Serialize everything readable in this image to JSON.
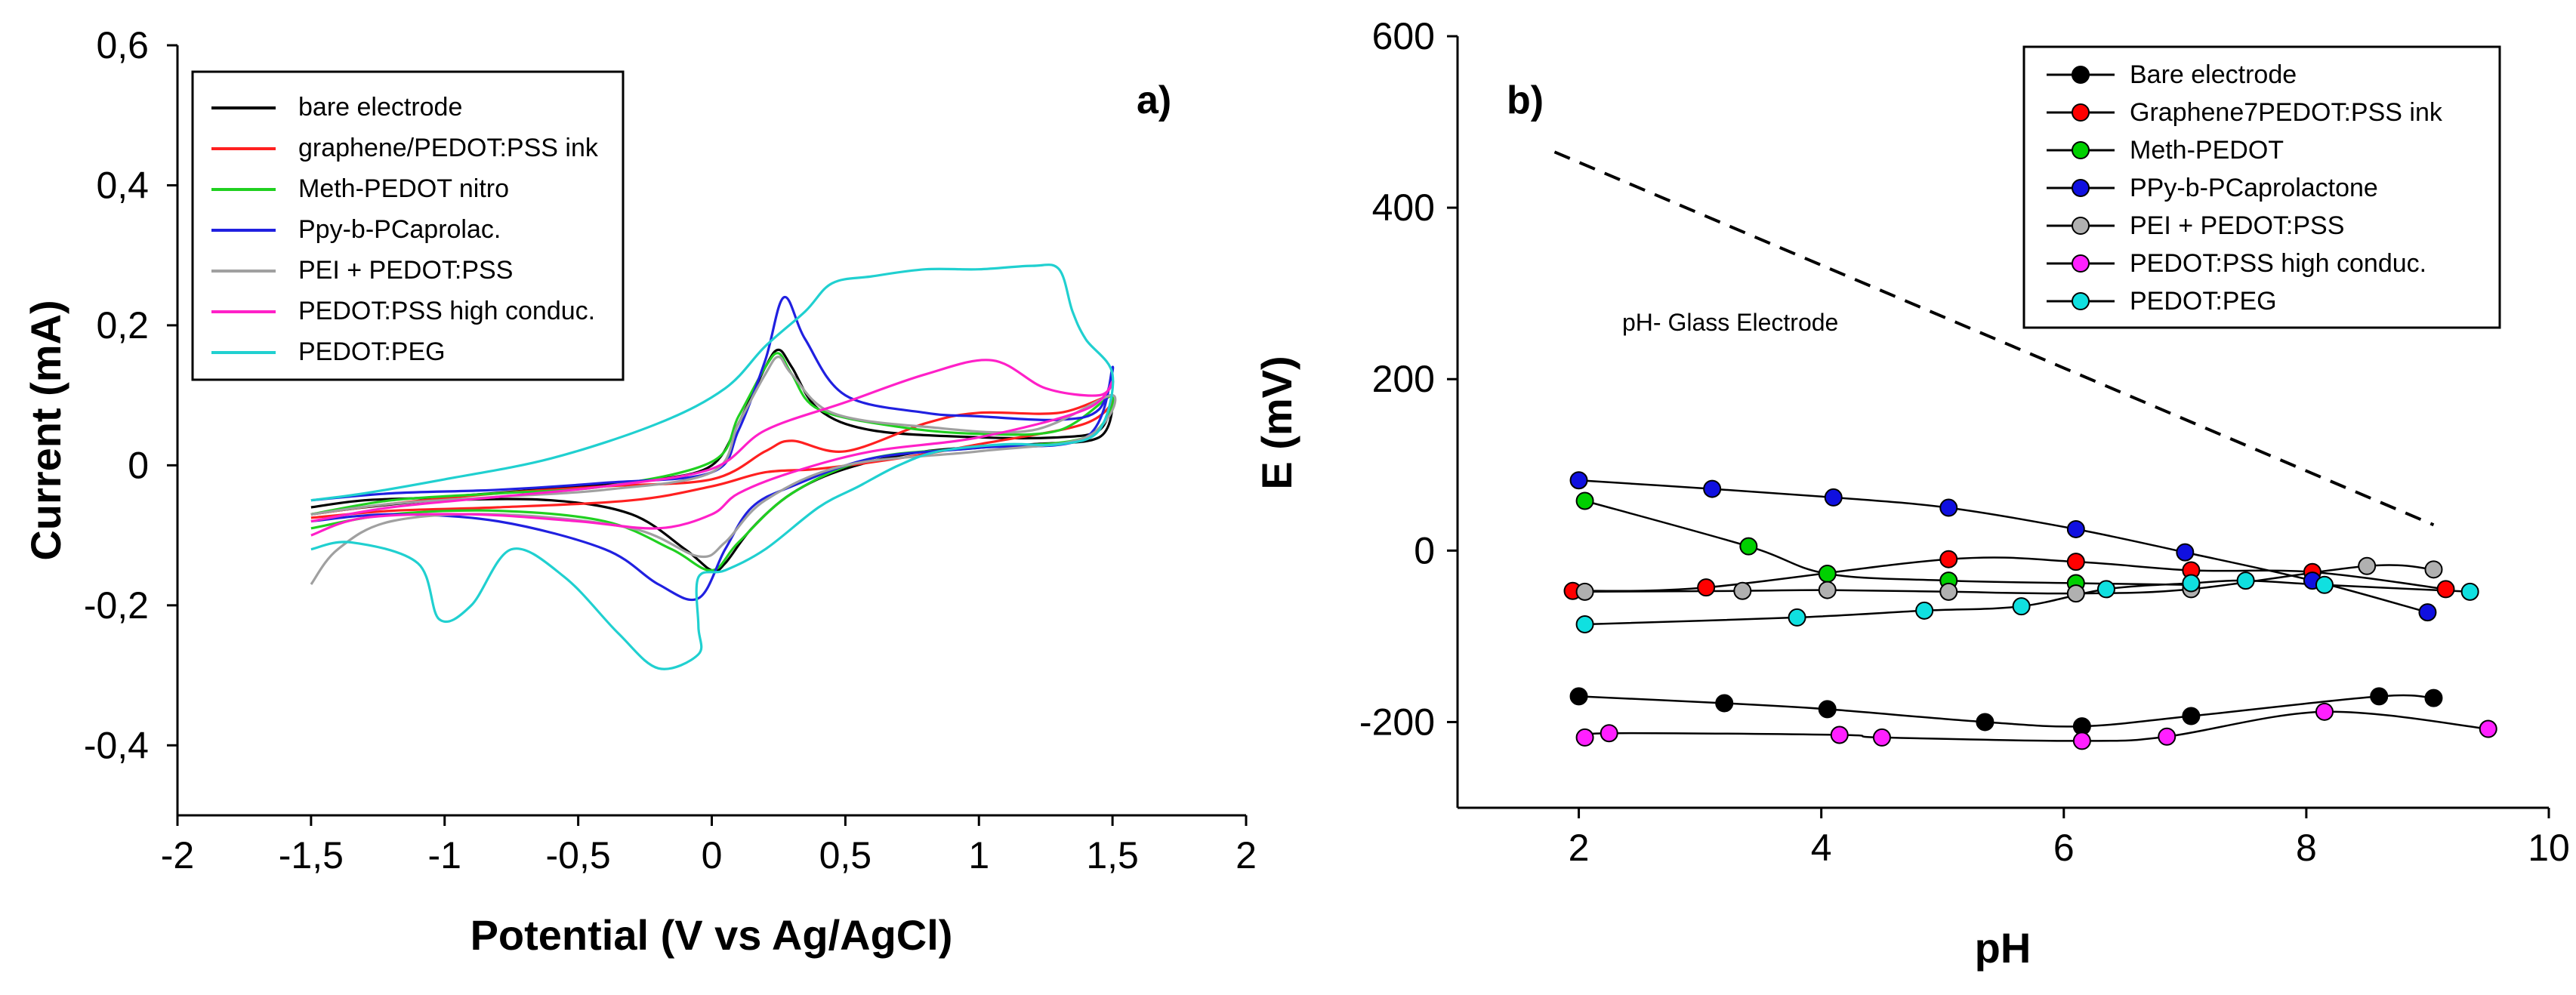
{
  "chart_data": [
    {
      "panel_label": "a)",
      "type": "line",
      "title": "",
      "xlabel": "Potential (V vs Ag/AgCl)",
      "ylabel": "Current (mA)",
      "xlim": [
        -2,
        2
      ],
      "ylim": [
        -0.5,
        0.6
      ],
      "x_tick_labels": [
        "-2",
        "-1,5",
        "-1",
        "-0,5",
        "0",
        "0,5",
        "1",
        "1,5",
        "2"
      ],
      "y_tick_labels": [
        "-0,4",
        "-0,2",
        "0",
        "0,2",
        "0,4",
        "0,6"
      ],
      "legend_position": "top-left",
      "series": [
        {
          "name": "bare electrode",
          "color": "#000000",
          "points": [
            [
              -1.5,
              -0.06
            ],
            [
              -1.3,
              -0.05
            ],
            [
              -1,
              -0.045
            ],
            [
              -0.5,
              -0.03
            ],
            [
              -0.2,
              -0.02
            ],
            [
              0,
              0
            ],
            [
              0.1,
              0.06
            ],
            [
              0.2,
              0.14
            ],
            [
              0.25,
              0.165
            ],
            [
              0.3,
              0.14
            ],
            [
              0.4,
              0.08
            ],
            [
              0.6,
              0.05
            ],
            [
              1,
              0.04
            ],
            [
              1.3,
              0.04
            ],
            [
              1.45,
              0.05
            ],
            [
              1.5,
              0.09
            ],
            [
              1.45,
              0.04
            ],
            [
              1.2,
              0.03
            ],
            [
              0.8,
              0.02
            ],
            [
              0.5,
              -0.005
            ],
            [
              0.3,
              -0.04
            ],
            [
              0.15,
              -0.09
            ],
            [
              0.05,
              -0.14
            ],
            [
              0,
              -0.15
            ],
            [
              -0.1,
              -0.12
            ],
            [
              -0.3,
              -0.07
            ],
            [
              -0.6,
              -0.05
            ],
            [
              -1,
              -0.05
            ],
            [
              -1.3,
              -0.06
            ],
            [
              -1.5,
              -0.07
            ]
          ]
        },
        {
          "name": "graphene/PEDOT:PSS ink",
          "color": "#ff2020",
          "points": [
            [
              -1.5,
              -0.07
            ],
            [
              -1.2,
              -0.055
            ],
            [
              -0.8,
              -0.04
            ],
            [
              -0.4,
              -0.03
            ],
            [
              0,
              -0.02
            ],
            [
              0.2,
              0.02
            ],
            [
              0.3,
              0.035
            ],
            [
              0.5,
              0.02
            ],
            [
              0.8,
              0.06
            ],
            [
              1,
              0.075
            ],
            [
              1.3,
              0.075
            ],
            [
              1.5,
              0.1
            ],
            [
              1.4,
              0.06
            ],
            [
              1,
              0.03
            ],
            [
              0.7,
              0.01
            ],
            [
              0.4,
              -0.005
            ],
            [
              0.2,
              -0.01
            ],
            [
              0,
              -0.03
            ],
            [
              -0.3,
              -0.05
            ],
            [
              -0.8,
              -0.06
            ],
            [
              -1.2,
              -0.065
            ],
            [
              -1.5,
              -0.075
            ]
          ]
        },
        {
          "name": "Meth-PEDOT nitro",
          "color": "#20d020",
          "points": [
            [
              -1.5,
              -0.07
            ],
            [
              -1.2,
              -0.05
            ],
            [
              -0.8,
              -0.04
            ],
            [
              -0.4,
              -0.03
            ],
            [
              0,
              0.005
            ],
            [
              0.1,
              0.07
            ],
            [
              0.2,
              0.14
            ],
            [
              0.25,
              0.16
            ],
            [
              0.3,
              0.13
            ],
            [
              0.4,
              0.08
            ],
            [
              0.7,
              0.055
            ],
            [
              1,
              0.045
            ],
            [
              1.3,
              0.05
            ],
            [
              1.5,
              0.1
            ],
            [
              1.4,
              0.04
            ],
            [
              1,
              0.025
            ],
            [
              0.6,
              0.01
            ],
            [
              0.3,
              -0.04
            ],
            [
              0.1,
              -0.11
            ],
            [
              0,
              -0.15
            ],
            [
              -0.15,
              -0.12
            ],
            [
              -0.4,
              -0.08
            ],
            [
              -0.8,
              -0.065
            ],
            [
              -1.2,
              -0.07
            ],
            [
              -1.5,
              -0.09
            ]
          ]
        },
        {
          "name": "Ppy-b-PCaprolac.",
          "color": "#2020e0",
          "points": [
            [
              -1.5,
              -0.05
            ],
            [
              -1.2,
              -0.04
            ],
            [
              -0.8,
              -0.035
            ],
            [
              -0.4,
              -0.025
            ],
            [
              0,
              -0.01
            ],
            [
              0.1,
              0.05
            ],
            [
              0.2,
              0.15
            ],
            [
              0.27,
              0.24
            ],
            [
              0.35,
              0.18
            ],
            [
              0.5,
              0.1
            ],
            [
              0.8,
              0.075
            ],
            [
              1,
              0.07
            ],
            [
              1.3,
              0.065
            ],
            [
              1.45,
              0.08
            ],
            [
              1.5,
              0.14
            ],
            [
              1.4,
              0.04
            ],
            [
              1,
              0.025
            ],
            [
              0.6,
              0.01
            ],
            [
              0.3,
              -0.03
            ],
            [
              0.15,
              -0.06
            ],
            [
              0.05,
              -0.12
            ],
            [
              -0.05,
              -0.19
            ],
            [
              -0.2,
              -0.17
            ],
            [
              -0.4,
              -0.12
            ],
            [
              -0.8,
              -0.08
            ],
            [
              -1.2,
              -0.07
            ],
            [
              -1.5,
              -0.08
            ]
          ]
        },
        {
          "name": "PEI + PEDOT:PSS",
          "color": "#a0a0a0",
          "points": [
            [
              -1.5,
              -0.07
            ],
            [
              -1.2,
              -0.055
            ],
            [
              -0.8,
              -0.045
            ],
            [
              -0.4,
              -0.035
            ],
            [
              0,
              -0.01
            ],
            [
              0.1,
              0.06
            ],
            [
              0.2,
              0.13
            ],
            [
              0.25,
              0.155
            ],
            [
              0.3,
              0.13
            ],
            [
              0.45,
              0.075
            ],
            [
              0.8,
              0.055
            ],
            [
              1.2,
              0.05
            ],
            [
              1.5,
              0.1
            ],
            [
              1.4,
              0.04
            ],
            [
              1,
              0.02
            ],
            [
              0.5,
              0
            ],
            [
              0.2,
              -0.05
            ],
            [
              0.05,
              -0.11
            ],
            [
              -0.05,
              -0.13
            ],
            [
              -0.3,
              -0.09
            ],
            [
              -0.8,
              -0.07
            ],
            [
              -1.2,
              -0.08
            ],
            [
              -1.4,
              -0.12
            ],
            [
              -1.5,
              -0.17
            ]
          ]
        },
        {
          "name": "PEDOT:PSS high conduc.",
          "color": "#ff20c8",
          "points": [
            [
              -1.5,
              -0.08
            ],
            [
              -1.2,
              -0.06
            ],
            [
              -0.8,
              -0.045
            ],
            [
              -0.4,
              -0.03
            ],
            [
              0,
              -0.005
            ],
            [
              0.2,
              0.05
            ],
            [
              0.5,
              0.09
            ],
            [
              0.8,
              0.13
            ],
            [
              1.05,
              0.15
            ],
            [
              1.25,
              0.11
            ],
            [
              1.45,
              0.1
            ],
            [
              1.5,
              0.12
            ],
            [
              1.4,
              0.08
            ],
            [
              1,
              0.04
            ],
            [
              0.6,
              0.02
            ],
            [
              0.3,
              -0.01
            ],
            [
              0.1,
              -0.04
            ],
            [
              0,
              -0.07
            ],
            [
              -0.2,
              -0.09
            ],
            [
              -0.5,
              -0.08
            ],
            [
              -0.9,
              -0.07
            ],
            [
              -1.3,
              -0.075
            ],
            [
              -1.5,
              -0.1
            ]
          ]
        },
        {
          "name": "PEDOT:PEG",
          "color": "#20d0d0",
          "points": [
            [
              -1.5,
              -0.12
            ],
            [
              -1.35,
              -0.11
            ],
            [
              -1.1,
              -0.14
            ],
            [
              -1.02,
              -0.22
            ],
            [
              -0.9,
              -0.2
            ],
            [
              -0.75,
              -0.12
            ],
            [
              -0.55,
              -0.16
            ],
            [
              -0.35,
              -0.24
            ],
            [
              -0.2,
              -0.29
            ],
            [
              -0.05,
              -0.27
            ],
            [
              -0.05,
              -0.23
            ],
            [
              -0.05,
              -0.16
            ],
            [
              0.05,
              -0.15
            ],
            [
              0.2,
              -0.12
            ],
            [
              0.4,
              -0.06
            ],
            [
              0.55,
              -0.03
            ],
            [
              0.7,
              0
            ],
            [
              0.85,
              0.02
            ],
            [
              1.1,
              0.03
            ],
            [
              1.3,
              0.03
            ],
            [
              1.45,
              0.05
            ],
            [
              1.5,
              0.13
            ],
            [
              1.4,
              0.18
            ],
            [
              1.35,
              0.22
            ],
            [
              1.3,
              0.28
            ],
            [
              1.2,
              0.285
            ],
            [
              1,
              0.28
            ],
            [
              0.8,
              0.28
            ],
            [
              0.6,
              0.27
            ],
            [
              0.45,
              0.26
            ],
            [
              0.35,
              0.22
            ],
            [
              0.2,
              0.17
            ],
            [
              0.05,
              0.11
            ],
            [
              -0.2,
              0.06
            ],
            [
              -0.6,
              0.01
            ],
            [
              -1,
              -0.02
            ],
            [
              -1.3,
              -0.04
            ],
            [
              -1.5,
              -0.05
            ]
          ]
        }
      ]
    },
    {
      "panel_label": "b)",
      "type": "line",
      "title": "",
      "xlabel": "pH",
      "ylabel": "E (mV)",
      "xlim": [
        1,
        10
      ],
      "ylim": [
        -300,
        600
      ],
      "x_tick_labels": [
        "2",
        "4",
        "6",
        "8",
        "10"
      ],
      "y_tick_labels": [
        "-200",
        "0",
        "200",
        "400",
        "600"
      ],
      "legend_position": "top-right",
      "annotation": "pH- Glass Electrode",
      "reference_line": {
        "points": [
          [
            1.8,
            465
          ],
          [
            9.05,
            30
          ]
        ],
        "style": "dashed",
        "color": "#000000"
      },
      "series": [
        {
          "name": "Bare electrode",
          "color": "#000000",
          "points": [
            [
              2,
              -170
            ],
            [
              3.2,
              -178
            ],
            [
              4.05,
              -185
            ],
            [
              5.35,
              -200
            ],
            [
              6.15,
              -205
            ],
            [
              7.05,
              -193
            ],
            [
              8.6,
              -170
            ],
            [
              9.05,
              -172
            ]
          ]
        },
        {
          "name": "Graphene7PEDOT:PSS ink",
          "color": "#ff0000",
          "points": [
            [
              1.95,
              -47
            ],
            [
              3.05,
              -43
            ],
            [
              5.05,
              -10
            ],
            [
              6.1,
              -13
            ],
            [
              7.05,
              -23
            ],
            [
              8.05,
              -25
            ],
            [
              9.15,
              -45
            ]
          ]
        },
        {
          "name": "Meth-PEDOT",
          "color": "#00d000",
          "points": [
            [
              2.05,
              58
            ],
            [
              3.4,
              5
            ],
            [
              4.05,
              -27
            ],
            [
              5.05,
              -35
            ],
            [
              6.1,
              -38
            ],
            [
              7.05,
              -40
            ]
          ]
        },
        {
          "name": "PPy-b-PCaprolactone",
          "color": "#1010e0",
          "points": [
            [
              2,
              82
            ],
            [
              3.1,
              72
            ],
            [
              4.1,
              62
            ],
            [
              5.05,
              50
            ],
            [
              6.1,
              25
            ],
            [
              7,
              -2
            ],
            [
              8.05,
              -35
            ],
            [
              9.0,
              -72
            ]
          ]
        },
        {
          "name": "PEI + PEDOT:PSS",
          "color": "#b0b0b0",
          "points": [
            [
              2.05,
              -48
            ],
            [
              3.35,
              -47
            ],
            [
              4.05,
              -46
            ],
            [
              5.05,
              -48
            ],
            [
              6.1,
              -50
            ],
            [
              7.05,
              -45
            ],
            [
              8.5,
              -18
            ],
            [
              9.05,
              -22
            ]
          ]
        },
        {
          "name": "PEDOT:PSS high conduc.",
          "color": "#ff20ff",
          "points": [
            [
              2.05,
              -218
            ],
            [
              2.25,
              -213
            ],
            [
              4.15,
              -215
            ],
            [
              4.5,
              -218
            ],
            [
              6.15,
              -222
            ],
            [
              6.85,
              -217
            ],
            [
              8.15,
              -188
            ],
            [
              9.5,
              -208
            ]
          ]
        },
        {
          "name": "PEDOT:PEG",
          "color": "#10e0e0",
          "points": [
            [
              2.05,
              -86
            ],
            [
              3.8,
              -78
            ],
            [
              4.85,
              -70
            ],
            [
              5.65,
              -65
            ],
            [
              6.35,
              -45
            ],
            [
              7.05,
              -38
            ],
            [
              7.5,
              -35
            ],
            [
              8.15,
              -40
            ],
            [
              9.35,
              -48
            ]
          ]
        }
      ]
    }
  ]
}
